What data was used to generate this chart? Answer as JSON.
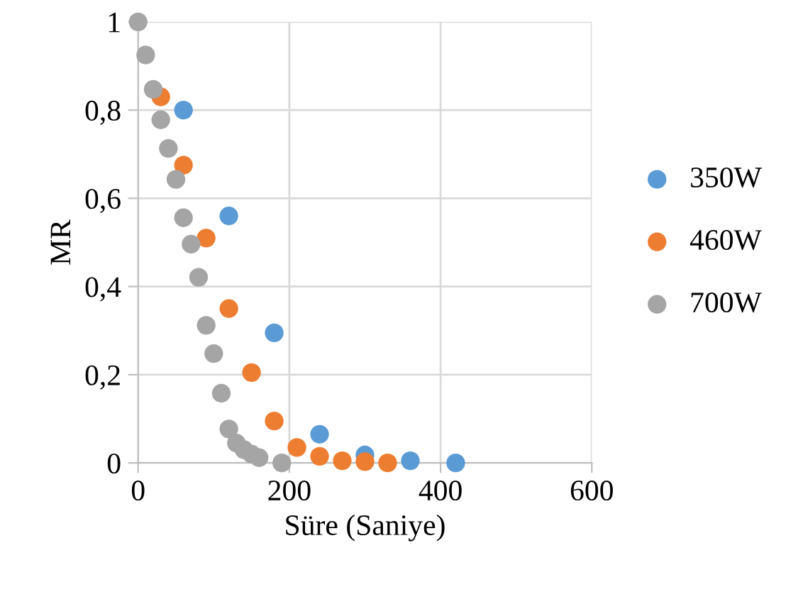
{
  "chart_data": {
    "type": "scatter",
    "xlabel": "Süre (Saniye)",
    "ylabel": "MR",
    "xlim": [
      0,
      600
    ],
    "ylim": [
      0,
      1
    ],
    "xticks": [
      0,
      200,
      400,
      600
    ],
    "yticks": [
      {
        "value": 0,
        "label": "0"
      },
      {
        "value": 0.2,
        "label": "0,2"
      },
      {
        "value": 0.4,
        "label": "0,4"
      },
      {
        "value": 0.6,
        "label": "0,6"
      },
      {
        "value": 0.8,
        "label": "0,8"
      },
      {
        "value": 1,
        "label": "1"
      }
    ],
    "grid": true,
    "legend": "right",
    "marker": "circle",
    "series": [
      {
        "name": "350W",
        "color": "#5b9bd5",
        "x": [
          60,
          120,
          180,
          240,
          300,
          360,
          420
        ],
        "values": [
          0.8,
          0.56,
          0.295,
          0.065,
          0.018,
          0.005,
          0
        ]
      },
      {
        "name": "460W",
        "color": "#ed7d31",
        "x": [
          30,
          60,
          90,
          120,
          150,
          180,
          210,
          240,
          270,
          300,
          330
        ],
        "values": [
          0.83,
          0.675,
          0.51,
          0.35,
          0.205,
          0.095,
          0.035,
          0.015,
          0.005,
          0.003,
          0
        ]
      },
      {
        "name": "700W",
        "color": "#a5a5a5",
        "x": [
          0,
          10,
          20,
          30,
          40,
          50,
          60,
          70,
          80,
          90,
          100,
          110,
          120,
          130,
          140,
          150,
          160,
          190
        ],
        "values": [
          1,
          0.925,
          0.847,
          0.778,
          0.713,
          0.643,
          0.556,
          0.496,
          0.421,
          0.312,
          0.248,
          0.158,
          0.077,
          0.045,
          0.03,
          0.02,
          0.012,
          0
        ]
      }
    ]
  }
}
